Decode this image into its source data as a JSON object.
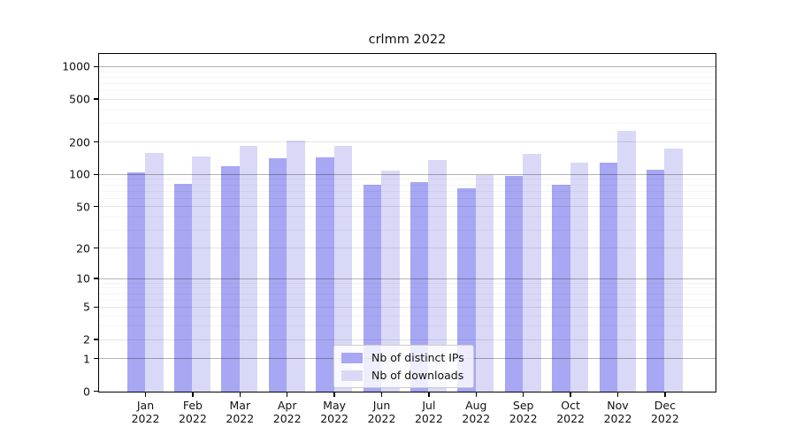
{
  "chart_data": {
    "type": "bar",
    "title": "crlmm 2022",
    "categories": [
      "Jan",
      "Feb",
      "Mar",
      "Apr",
      "May",
      "Jun",
      "Jul",
      "Aug",
      "Sep",
      "Oct",
      "Nov",
      "Dec"
    ],
    "year_label": "2022",
    "series": [
      {
        "name": "Nb of distinct IPs",
        "color": "#a7a7f3",
        "values": [
          106,
          83,
          120,
          143,
          145,
          81,
          86,
          75,
          98,
          81,
          131,
          112
        ]
      },
      {
        "name": "Nb of downloads",
        "color": "#d9d9f7",
        "values": [
          160,
          148,
          186,
          208,
          188,
          110,
          137,
          99,
          157,
          130,
          255,
          176
        ]
      }
    ],
    "xlabel": "",
    "ylabel": "",
    "yticks": [
      0,
      1,
      2,
      5,
      10,
      20,
      50,
      100,
      200,
      500,
      1000
    ],
    "ylim": [
      0,
      1300
    ],
    "scale": "log1p",
    "grid": true,
    "legend_position": "bottom-center",
    "background_color": "#ffffff",
    "frame_color": "#000000"
  }
}
